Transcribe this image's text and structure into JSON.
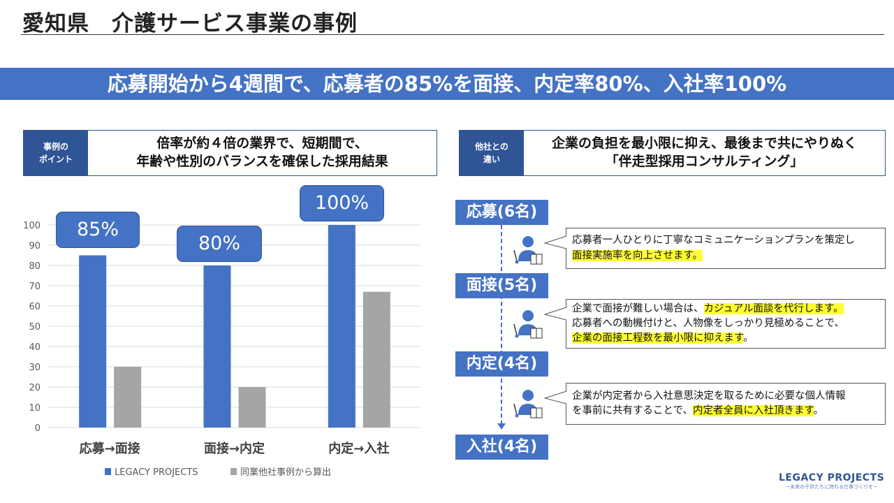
{
  "header": {
    "title": "愛知県　介護サービス事業の事例"
  },
  "banner": {
    "text": "応募開始から4週間で、応募者の85%を面接、内定率80%、入社率100%"
  },
  "point_left": {
    "label_l1": "事例の",
    "label_l2": "ポイント",
    "line1": "倍率が約４倍の業界で、短期間で、",
    "line2": "年齢や性別のバランスを確保した採用結果"
  },
  "point_right": {
    "label_l1": "他社との",
    "label_l2": "違い",
    "line1": "企業の負担を最小限に抑え、最後まで共にやりぬく",
    "line2": "「伴走型採用コンサルティング」"
  },
  "chart_data": {
    "type": "bar",
    "categories": [
      "応募→面接",
      "面接→内定",
      "内定→入社"
    ],
    "series": [
      {
        "name": "LEGACY PROJECTS",
        "values": [
          85,
          80,
          100
        ],
        "color": "#4472c4"
      },
      {
        "name": "同業他社事例から算出",
        "values": [
          30,
          20,
          67
        ],
        "color": "#a5a5a5"
      }
    ],
    "callouts": [
      "85%",
      "80%",
      "100%"
    ],
    "ylim": [
      0,
      100
    ],
    "yticks": [
      0,
      10,
      20,
      30,
      40,
      50,
      60,
      70,
      80,
      90,
      100
    ],
    "grid": true,
    "legend": "bottom"
  },
  "flow": {
    "steps": [
      "応募(6名)",
      "面接(5名)",
      "内定(4名)",
      "入社(4名)"
    ],
    "notes": [
      {
        "plain1": "応募者一人ひとりに丁寧なコミュニケーションプランを策定し",
        "hl1": "面接実施率を向上させます。"
      },
      {
        "plain1": "企業で面接が難しい場合は、",
        "hl1": "カジュアル面談を代行します。",
        "plain2": "応募者への動機付けと、人物像をしっかり見極めることで、",
        "hl2": "企業の面接工程数を最小限に抑えます",
        "plain3": "。"
      },
      {
        "plain1": "企業が内定者から入社意思決定を取るために必要な個人情報",
        "plain2": "を事前に共有することで、",
        "hl2": "内定者全員に入社頂きます",
        "plain3": "。"
      }
    ]
  },
  "logo": {
    "name": "LEGACY PROJECTS",
    "tagline": "~未来の子供たちに誇れる仕事づくりを~"
  }
}
